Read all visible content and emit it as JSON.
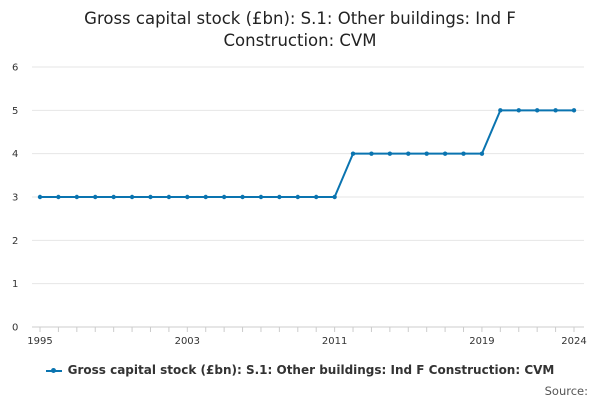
{
  "title_line1": "Gross capital stock (£bn): S.1: Other buildings: Ind F",
  "title_line2": "Construction: CVM",
  "source_label": "Source:",
  "colors": {
    "series": "#0a74b0",
    "grid": "#e6e6e6",
    "axis": "#cccccc"
  },
  "chart_data": {
    "type": "line",
    "x": [
      1995,
      1996,
      1997,
      1998,
      1999,
      2000,
      2001,
      2002,
      2003,
      2004,
      2005,
      2006,
      2007,
      2008,
      2009,
      2010,
      2011,
      2012,
      2013,
      2014,
      2015,
      2016,
      2017,
      2018,
      2019,
      2020,
      2021,
      2022,
      2023,
      2024
    ],
    "series": [
      {
        "name": "Gross capital stock (£bn): S.1: Other buildings: Ind F Construction: CVM",
        "values": [
          3,
          3,
          3,
          3,
          3,
          3,
          3,
          3,
          3,
          3,
          3,
          3,
          3,
          3,
          3,
          3,
          3,
          4,
          4,
          4,
          4,
          4,
          4,
          4,
          4,
          5,
          5,
          5,
          5,
          5
        ]
      }
    ],
    "x_tick_labels": [
      "1995",
      "2003",
      "2011",
      "2019",
      "2024"
    ],
    "y_tick_labels": [
      "0",
      "1",
      "2",
      "3",
      "4",
      "5",
      "6"
    ],
    "ylim": [
      0,
      6
    ],
    "xlim": [
      1995,
      2024
    ],
    "grid": true,
    "legend_position": "bottom"
  }
}
